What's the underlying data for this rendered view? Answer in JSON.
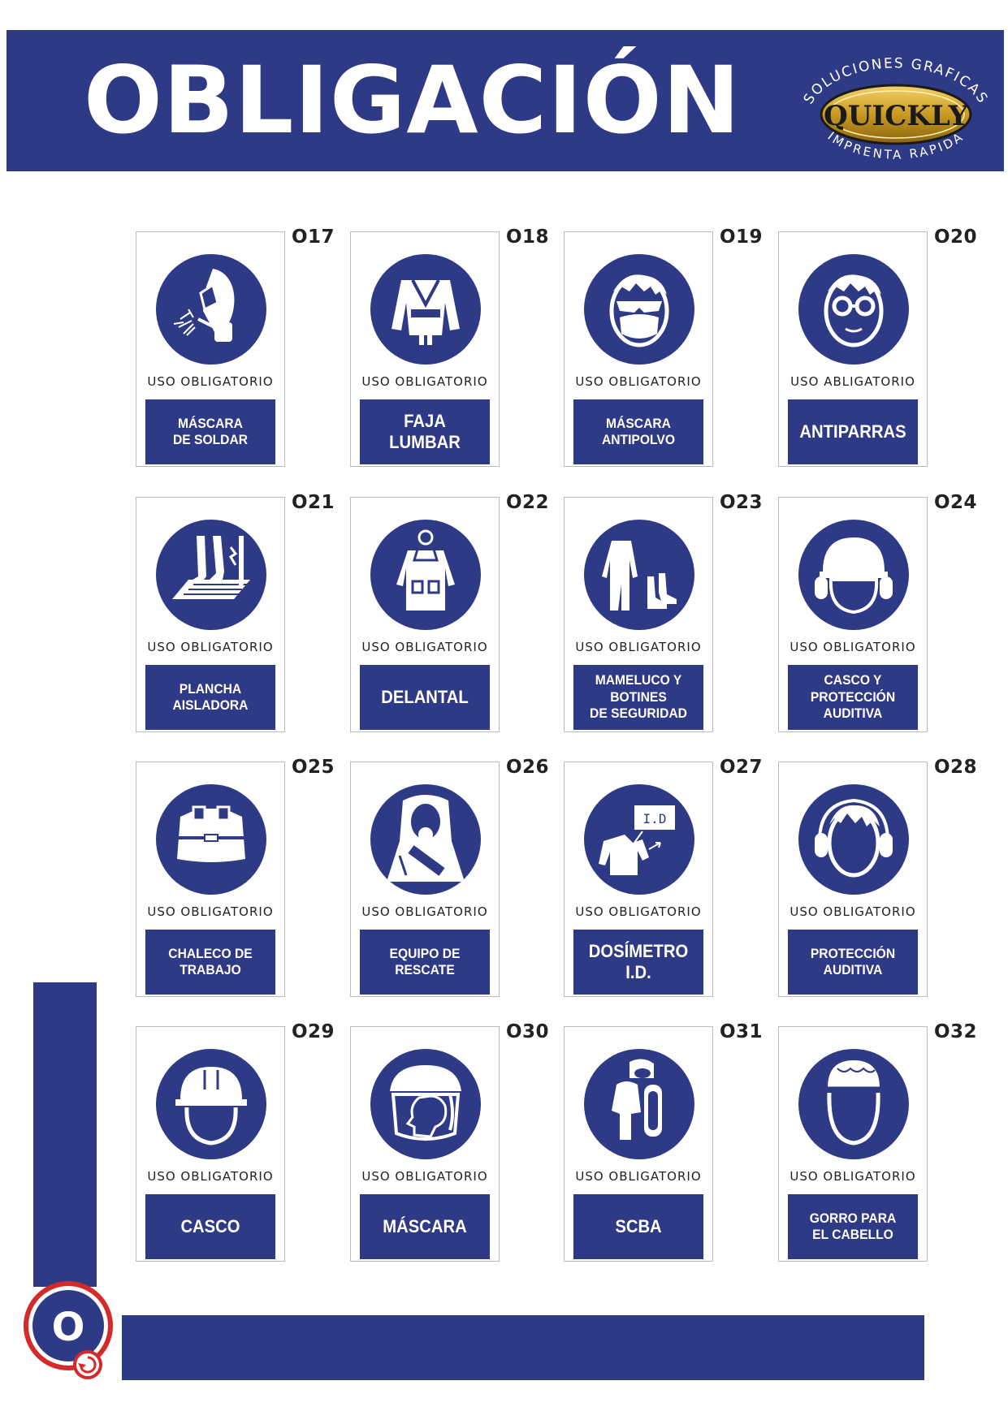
{
  "header": {
    "title": "OBLIGACIÓN",
    "logo": {
      "top_text": "SOLUCIONES GRAFICAS",
      "brand": "QUICKLY",
      "bottom_text": "IMPRENTA RAPIDA"
    }
  },
  "signs": [
    {
      "code": "O17",
      "uso": "USO OBLIGATORIO",
      "label": "MÁSCARA\nDE SOLDAR",
      "icon": "welding-mask-icon"
    },
    {
      "code": "O18",
      "uso": "USO OBLIGATORIO",
      "label": "FAJA\nLUMBAR",
      "icon": "lumbar-belt-icon"
    },
    {
      "code": "O19",
      "uso": "USO OBLIGATORIO",
      "label": "MÁSCARA\nANTIPOLVO",
      "icon": "dust-mask-icon"
    },
    {
      "code": "O20",
      "uso": "USO ABLIGATORIO",
      "label": "ANTIPARRAS",
      "icon": "goggles-icon"
    },
    {
      "code": "O21",
      "uso": "USO OBLIGATORIO",
      "label": "PLANCHA\nAISLADORA",
      "icon": "insulating-mat-icon"
    },
    {
      "code": "O22",
      "uso": "USO OBLIGATORIO",
      "label": "DELANTAL",
      "icon": "apron-icon"
    },
    {
      "code": "O23",
      "uso": "USO OBLIGATORIO",
      "label": "MAMELUCO Y BOTINES\nDE SEGURIDAD",
      "icon": "coverall-boots-icon"
    },
    {
      "code": "O24",
      "uso": "USO OBLIGATORIO",
      "label": "CASCO Y PROTECCIÓN\nAUDITIVA",
      "icon": "helmet-earmuffs-icon"
    },
    {
      "code": "O25",
      "uso": "USO OBLIGATORIO",
      "label": "CHALECO DE\nTRABAJO",
      "icon": "work-vest-icon"
    },
    {
      "code": "O26",
      "uso": "USO OBLIGATORIO",
      "label": "EQUIPO DE\nRESCATE",
      "icon": "rescue-suit-icon"
    },
    {
      "code": "O27",
      "uso": "USO OBLIGATORIO",
      "label": "DOSÍMETRO\nI.D.",
      "icon": "dosimeter-icon"
    },
    {
      "code": "O28",
      "uso": "USO OBLIGATORIO",
      "label": "PROTECCIÓN\nAUDITIVA",
      "icon": "ear-protection-icon"
    },
    {
      "code": "O29",
      "uso": "USO OBLIGATORIO",
      "label": "CASCO",
      "icon": "helmet-icon"
    },
    {
      "code": "O30",
      "uso": "USO OBLIGATORIO",
      "label": "MÁSCARA",
      "icon": "face-shield-icon"
    },
    {
      "code": "O31",
      "uso": "USO OBLIGATORIO",
      "label": "SCBA",
      "icon": "scba-icon"
    },
    {
      "code": "O32",
      "uso": "USO OBLIGATORIO",
      "label": "GORRO PARA\nEL CABELLO",
      "icon": "hair-cap-icon"
    }
  ],
  "dosimeter_card_text": "I.D",
  "footer": {
    "badge_letter": "O"
  },
  "colors": {
    "brand_blue": "#2e3a86",
    "logo_gold": "#c99a22"
  }
}
